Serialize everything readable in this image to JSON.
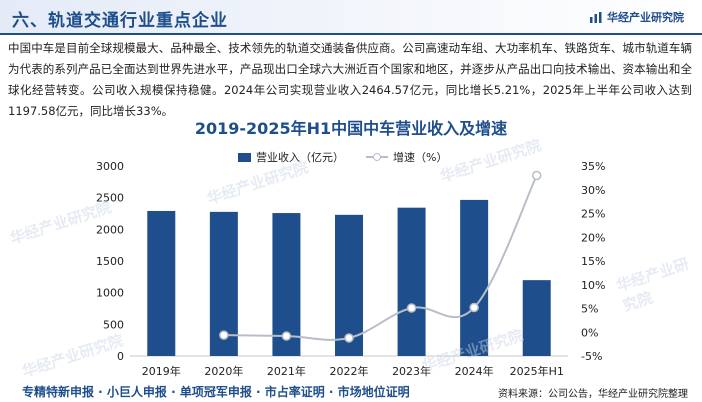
{
  "header": {
    "section_title": "六、轨道交通行业重点企业",
    "brand": "华经产业研究院"
  },
  "paragraph": "中国中车是目前全球规模最大、品种最全、技术领先的轨道交通装备供应商。公司高速动车组、大功率机车、铁路货车、城市轨道车辆为代表的系列产品已全面达到世界先进水平，产品现出口全球六大洲近百个国家和地区，并逐步从产品出口向技术输出、资本输出和全球化经营转变。公司收入规模保持稳健。2024年公司实现营业收入2464.57亿元，同比增长5.21%，2025年上半年公司收入达到1197.58亿元，同比增长33%。",
  "watermark": "华经产业研究院",
  "chart_data": {
    "type": "bar",
    "title": "2019-2025年H1中国中车营业收入及增速",
    "categories": [
      "2019年",
      "2020年",
      "2021年",
      "2022年",
      "2023年",
      "2024年",
      "2025年H1"
    ],
    "series": [
      {
        "name": "营业收入（亿元）",
        "type": "bar",
        "axis": "left",
        "color": "#1f4e8c",
        "values": [
          2290,
          2276,
          2257,
          2229,
          2342,
          2464.57,
          1197.58
        ]
      },
      {
        "name": "增速（%）",
        "type": "line",
        "axis": "right",
        "color": "#b8bec8",
        "values": [
          null,
          -0.6,
          -0.8,
          -1.2,
          5.1,
          5.21,
          33
        ]
      }
    ],
    "y_left": {
      "min": 0,
      "max": 3000,
      "step": 500,
      "ticks": [
        "0",
        "500",
        "1000",
        "1500",
        "2000",
        "2500",
        "3000"
      ]
    },
    "y_right": {
      "min": -5,
      "max": 35,
      "step": 5,
      "ticks": [
        "-5%",
        "0%",
        "5%",
        "10%",
        "15%",
        "20%",
        "25%",
        "30%",
        "35%"
      ]
    },
    "legend_position": "top-center",
    "grid": false
  },
  "footer": {
    "left_text": "专精特新申报 · 小巨人申报 · 单项冠军申报 · 市占率证明 · 市场地位证明",
    "source": "资料来源：公司公告，华经产业研究院整理"
  }
}
